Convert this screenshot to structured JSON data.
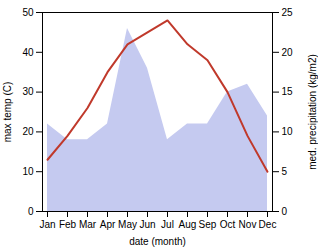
{
  "chart_data": {
    "type": "line",
    "categories": [
      "Jan",
      "Feb",
      "Mar",
      "Apr",
      "May",
      "Jun",
      "Jul",
      "Aug",
      "Sep",
      "Oct",
      "Nov",
      "Dec"
    ],
    "series": [
      {
        "type": "area",
        "axis": "y2",
        "color": "#c5caf0",
        "values": [
          11,
          9,
          9,
          11,
          23,
          18,
          9,
          11,
          11,
          15,
          16,
          12
        ]
      },
      {
        "type": "line",
        "color": "#c0392b",
        "values": [
          13,
          19,
          26,
          35,
          42,
          45,
          48,
          42,
          38,
          30,
          19,
          10
        ]
      }
    ],
    "xlabel": "date (month)",
    "ylabel": "max temp (C)",
    "y2label": "med. precipitation (kg/m2)",
    "ylim": [
      0,
      50
    ],
    "yticks": [
      0,
      10,
      20,
      30,
      40,
      50
    ],
    "y2lim": [
      0,
      25
    ],
    "y2ticks": [
      0,
      5,
      10,
      15,
      20,
      25
    ],
    "grid": false
  }
}
